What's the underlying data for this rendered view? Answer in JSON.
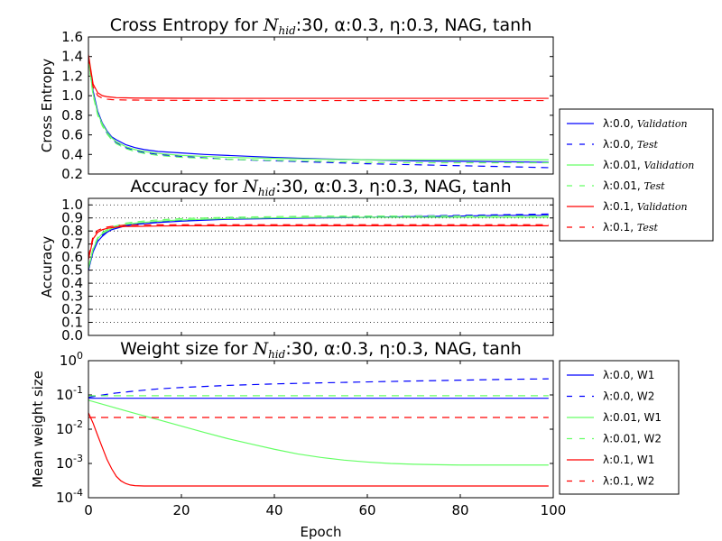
{
  "chart_data": [
    {
      "type": "line",
      "title": "Cross Entropy for N_hid:30, α:0.3, η:0.3, NAG, tanh",
      "title_parts": {
        "lead": "Cross Entropy for ",
        "sym": "N",
        "sub": "hid",
        "tail": ":30, α:0.3, η:0.3, NAG, tanh"
      },
      "ylabel": "Cross Entropy",
      "xlim": [
        0,
        100
      ],
      "ylim": [
        0.2,
        1.6
      ],
      "yticks": [
        "0.2",
        "0.4",
        "0.6",
        "0.8",
        "1.0",
        "1.2",
        "1.4",
        "1.6"
      ],
      "grid": false,
      "legend": "right",
      "series": [
        {
          "name": "λ:0.0, Validation",
          "legend_main": "λ:0.0, ",
          "legend_it": "Validation",
          "color": "#0000ff",
          "dash": "solid",
          "x": [
            0,
            1,
            2,
            3,
            4,
            5,
            6,
            8,
            10,
            12,
            15,
            20,
            25,
            30,
            40,
            50,
            60,
            70,
            80,
            90,
            99
          ],
          "values": [
            1.38,
            1.05,
            0.84,
            0.72,
            0.64,
            0.58,
            0.55,
            0.5,
            0.47,
            0.45,
            0.43,
            0.415,
            0.4,
            0.39,
            0.37,
            0.355,
            0.345,
            0.335,
            0.33,
            0.325,
            0.32
          ]
        },
        {
          "name": "λ:0.0, Test",
          "legend_main": "λ:0.0, ",
          "legend_it": "Test",
          "color": "#0000ff",
          "dash": "dashed",
          "x": [
            0,
            1,
            2,
            3,
            4,
            5,
            6,
            8,
            10,
            12,
            15,
            20,
            25,
            30,
            40,
            50,
            60,
            70,
            80,
            90,
            99
          ],
          "values": [
            1.38,
            1.03,
            0.82,
            0.7,
            0.62,
            0.56,
            0.52,
            0.47,
            0.44,
            0.42,
            0.4,
            0.38,
            0.365,
            0.35,
            0.335,
            0.32,
            0.305,
            0.295,
            0.285,
            0.275,
            0.265
          ]
        },
        {
          "name": "λ:0.01, Validation",
          "legend_main": "λ:0.01, ",
          "legend_it": "Validation",
          "color": "#66ff66",
          "dash": "solid",
          "x": [
            0,
            1,
            2,
            3,
            4,
            5,
            6,
            8,
            10,
            12,
            15,
            20,
            25,
            30,
            40,
            50,
            60,
            70,
            80,
            90,
            99
          ],
          "values": [
            1.37,
            1.02,
            0.82,
            0.71,
            0.63,
            0.57,
            0.53,
            0.48,
            0.45,
            0.43,
            0.41,
            0.39,
            0.38,
            0.37,
            0.36,
            0.35,
            0.345,
            0.345,
            0.345,
            0.345,
            0.345
          ]
        },
        {
          "name": "λ:0.01, Test",
          "legend_main": "λ:0.01, ",
          "legend_it": "Test",
          "color": "#66ff66",
          "dash": "dashed",
          "x": [
            0,
            1,
            2,
            3,
            4,
            5,
            6,
            8,
            10,
            12,
            15,
            20,
            25,
            30,
            40,
            50,
            60,
            70,
            80,
            90,
            99
          ],
          "values": [
            1.36,
            1.0,
            0.8,
            0.69,
            0.61,
            0.55,
            0.51,
            0.46,
            0.43,
            0.41,
            0.39,
            0.37,
            0.36,
            0.35,
            0.34,
            0.33,
            0.32,
            0.315,
            0.315,
            0.315,
            0.315
          ]
        },
        {
          "name": "λ:0.1, Validation",
          "legend_main": "λ:0.1, ",
          "legend_it": "Validation",
          "color": "#ff0000",
          "dash": "solid",
          "x": [
            0,
            1,
            2,
            3,
            4,
            5,
            6,
            8,
            10,
            15,
            20,
            30,
            40,
            60,
            80,
            99
          ],
          "values": [
            1.42,
            1.12,
            1.03,
            1.0,
            0.99,
            0.985,
            0.98,
            0.978,
            0.976,
            0.975,
            0.974,
            0.973,
            0.973,
            0.973,
            0.973,
            0.973
          ]
        },
        {
          "name": "λ:0.1, Test",
          "legend_main": "λ:0.1, ",
          "legend_it": "Test",
          "color": "#ff0000",
          "dash": "dashed",
          "x": [
            0,
            1,
            2,
            3,
            4,
            5,
            6,
            8,
            10,
            15,
            20,
            30,
            40,
            60,
            80,
            99
          ],
          "values": [
            1.4,
            1.09,
            1.0,
            0.975,
            0.965,
            0.96,
            0.958,
            0.956,
            0.955,
            0.953,
            0.952,
            0.951,
            0.95,
            0.95,
            0.95,
            0.95
          ]
        }
      ]
    },
    {
      "type": "line",
      "title": "Accuracy for N_hid:30, α:0.3, η:0.3, NAG, tanh",
      "title_parts": {
        "lead": "Accuracy for ",
        "sym": "N",
        "sub": "hid",
        "tail": ":30, α:0.3, η:0.3, NAG, tanh"
      },
      "ylabel": "Accuracy",
      "xlim": [
        0,
        100
      ],
      "ylim": [
        0.0,
        1.05
      ],
      "yticks": [
        "0.0",
        "0.1",
        "0.2",
        "0.3",
        "0.4",
        "0.5",
        "0.6",
        "0.7",
        "0.8",
        "0.9",
        "1.0"
      ],
      "grid": true,
      "series": [
        {
          "name": "λ:0.0, Validation",
          "color": "#0000ff",
          "dash": "solid",
          "x": [
            0,
            1,
            2,
            3,
            4,
            5,
            6,
            8,
            10,
            15,
            20,
            30,
            40,
            50,
            60,
            70,
            80,
            90,
            99
          ],
          "values": [
            0.5,
            0.64,
            0.72,
            0.76,
            0.79,
            0.81,
            0.82,
            0.84,
            0.85,
            0.865,
            0.875,
            0.89,
            0.895,
            0.9,
            0.905,
            0.91,
            0.915,
            0.92,
            0.92
          ]
        },
        {
          "name": "λ:0.0, Test",
          "color": "#0000ff",
          "dash": "dashed",
          "x": [
            0,
            1,
            2,
            3,
            4,
            5,
            6,
            8,
            10,
            15,
            20,
            30,
            40,
            50,
            60,
            70,
            80,
            90,
            99
          ],
          "values": [
            0.5,
            0.65,
            0.73,
            0.77,
            0.8,
            0.82,
            0.83,
            0.845,
            0.855,
            0.87,
            0.88,
            0.895,
            0.9,
            0.905,
            0.91,
            0.915,
            0.92,
            0.925,
            0.93
          ]
        },
        {
          "name": "λ:0.01, Validation",
          "color": "#66ff66",
          "dash": "solid",
          "x": [
            0,
            1,
            2,
            3,
            4,
            5,
            6,
            8,
            10,
            15,
            20,
            30,
            40,
            50,
            60,
            70,
            80,
            90,
            99
          ],
          "values": [
            0.51,
            0.66,
            0.74,
            0.78,
            0.8,
            0.82,
            0.83,
            0.85,
            0.86,
            0.875,
            0.885,
            0.895,
            0.9,
            0.905,
            0.905,
            0.905,
            0.905,
            0.905,
            0.905
          ]
        },
        {
          "name": "λ:0.01, Test",
          "color": "#66ff66",
          "dash": "dashed",
          "x": [
            0,
            1,
            2,
            3,
            4,
            5,
            6,
            8,
            10,
            15,
            20,
            30,
            40,
            50,
            60,
            70,
            80,
            90,
            99
          ],
          "values": [
            0.52,
            0.67,
            0.75,
            0.79,
            0.81,
            0.83,
            0.84,
            0.86,
            0.87,
            0.885,
            0.895,
            0.905,
            0.91,
            0.915,
            0.915,
            0.915,
            0.915,
            0.915,
            0.915
          ]
        },
        {
          "name": "λ:0.1, Validation",
          "color": "#ff0000",
          "dash": "solid",
          "x": [
            0,
            1,
            2,
            3,
            4,
            5,
            6,
            8,
            10,
            15,
            20,
            30,
            40,
            60,
            80,
            99
          ],
          "values": [
            0.58,
            0.74,
            0.79,
            0.81,
            0.82,
            0.825,
            0.83,
            0.835,
            0.835,
            0.838,
            0.84,
            0.84,
            0.84,
            0.84,
            0.84,
            0.84
          ]
        },
        {
          "name": "λ:0.1, Test",
          "color": "#ff0000",
          "dash": "dashed",
          "x": [
            0,
            1,
            2,
            3,
            4,
            5,
            6,
            8,
            10,
            15,
            20,
            30,
            40,
            60,
            80,
            99
          ],
          "values": [
            0.6,
            0.76,
            0.805,
            0.82,
            0.83,
            0.835,
            0.84,
            0.845,
            0.845,
            0.847,
            0.848,
            0.848,
            0.848,
            0.848,
            0.848,
            0.848
          ]
        }
      ]
    },
    {
      "type": "line",
      "title": "Weight size for N_hid:30, α:0.3, η:0.3, NAG, tanh",
      "title_parts": {
        "lead": "Weight size for ",
        "sym": "N",
        "sub": "hid",
        "tail": ":30, α:0.3, η:0.3, NAG, tanh"
      },
      "ylabel": "Mean weight size",
      "xlabel": "Epoch",
      "xlim": [
        0,
        100
      ],
      "xticks": [
        "0",
        "20",
        "40",
        "60",
        "80",
        "100"
      ],
      "yscale": "log",
      "ylim": [
        0.0001,
        1
      ],
      "yticks": [
        {
          "base": "10",
          "exp": "-4"
        },
        {
          "base": "10",
          "exp": "-3"
        },
        {
          "base": "10",
          "exp": "-2"
        },
        {
          "base": "10",
          "exp": "-1"
        },
        {
          "base": "10",
          "exp": "0"
        }
      ],
      "grid": false,
      "legend": "right",
      "series": [
        {
          "name": "λ:0.0, W1",
          "legend_main": "λ:0.0, W1",
          "color": "#0000ff",
          "dash": "solid",
          "x": [
            0,
            99
          ],
          "values": [
            0.08,
            0.08
          ]
        },
        {
          "name": "λ:0.0, W2",
          "legend_main": "λ:0.0, W2",
          "color": "#0000ff",
          "dash": "dashed",
          "x": [
            0,
            5,
            10,
            15,
            20,
            30,
            40,
            50,
            60,
            70,
            80,
            90,
            99
          ],
          "values": [
            0.085,
            0.11,
            0.13,
            0.15,
            0.165,
            0.19,
            0.21,
            0.225,
            0.24,
            0.255,
            0.27,
            0.285,
            0.295
          ]
        },
        {
          "name": "λ:0.01, W1",
          "legend_main": "λ:0.01, W1",
          "color": "#66ff66",
          "dash": "solid",
          "x": [
            0,
            5,
            10,
            15,
            20,
            25,
            30,
            35,
            40,
            45,
            50,
            55,
            60,
            65,
            70,
            75,
            80,
            85,
            90,
            95,
            99
          ],
          "values": [
            0.07,
            0.045,
            0.029,
            0.019,
            0.0123,
            0.008,
            0.0053,
            0.0037,
            0.0026,
            0.0019,
            0.0015,
            0.00125,
            0.0011,
            0.001,
            0.00095,
            0.00092,
            0.0009,
            0.0009,
            0.0009,
            0.0009,
            0.0009
          ]
        },
        {
          "name": "λ:0.01, W2",
          "legend_main": "λ:0.01, W2",
          "color": "#66ff66",
          "dash": "dashed",
          "x": [
            0,
            99
          ],
          "values": [
            0.095,
            0.095
          ]
        },
        {
          "name": "λ:0.1, W1",
          "legend_main": "λ:0.1, W1",
          "color": "#ff0000",
          "dash": "solid",
          "x": [
            0,
            1,
            2,
            3,
            4,
            5,
            6,
            7,
            8,
            9,
            10,
            12,
            15,
            20,
            40,
            60,
            80,
            99
          ],
          "values": [
            0.03,
            0.015,
            0.0065,
            0.0029,
            0.0013,
            0.0007,
            0.00042,
            0.00031,
            0.00026,
            0.000235,
            0.000225,
            0.00022,
            0.00022,
            0.00022,
            0.00022,
            0.00022,
            0.00022,
            0.00022
          ]
        },
        {
          "name": "λ:0.1, W2",
          "legend_main": "λ:0.1, W2",
          "color": "#ff0000",
          "dash": "dashed",
          "x": [
            0,
            99
          ],
          "values": [
            0.022,
            0.022
          ]
        }
      ]
    }
  ]
}
